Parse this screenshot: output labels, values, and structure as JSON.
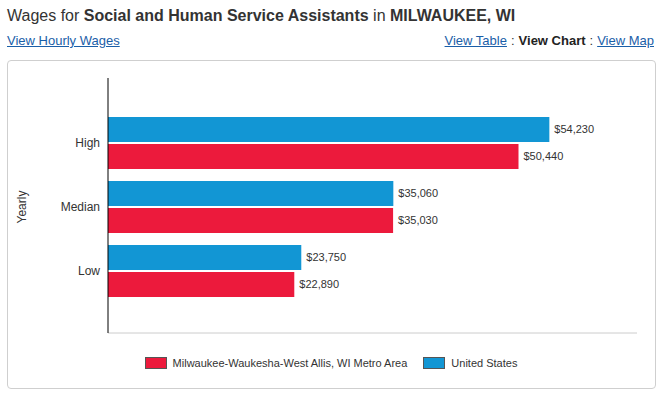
{
  "header": {
    "title": [
      {
        "text": "Wages for ",
        "bold": false
      },
      {
        "text": "Social and Human Service Assistants",
        "bold": true
      },
      {
        "text": " in ",
        "bold": false
      },
      {
        "text": "MILWAUKEE, WI",
        "bold": true
      }
    ],
    "left_link": "View Hourly Wages",
    "views": [
      "View Table",
      "View Chart",
      "View Map"
    ],
    "current_view": "View Chart",
    "separator": ":"
  },
  "chart_data": {
    "type": "bar",
    "orientation": "horizontal",
    "ylabel": "Yearly",
    "categories": [
      "High",
      "Median",
      "Low"
    ],
    "series": [
      {
        "name": "Milwaukee-Waukesha-West Allis, WI Metro Area",
        "color": "#ec1a3c",
        "values": [
          50440,
          35030,
          22890
        ],
        "value_labels": [
          "$50,440",
          "$35,030",
          "$22,890"
        ]
      },
      {
        "name": "United States",
        "color": "#1296d4",
        "values": [
          54230,
          35060,
          23750
        ],
        "value_labels": [
          "$54,230",
          "$35,060",
          "$23,750"
        ]
      }
    ],
    "xlim": [
      0,
      65000
    ],
    "data_labels": true,
    "tick_labels": "y",
    "legend": "bottom"
  }
}
